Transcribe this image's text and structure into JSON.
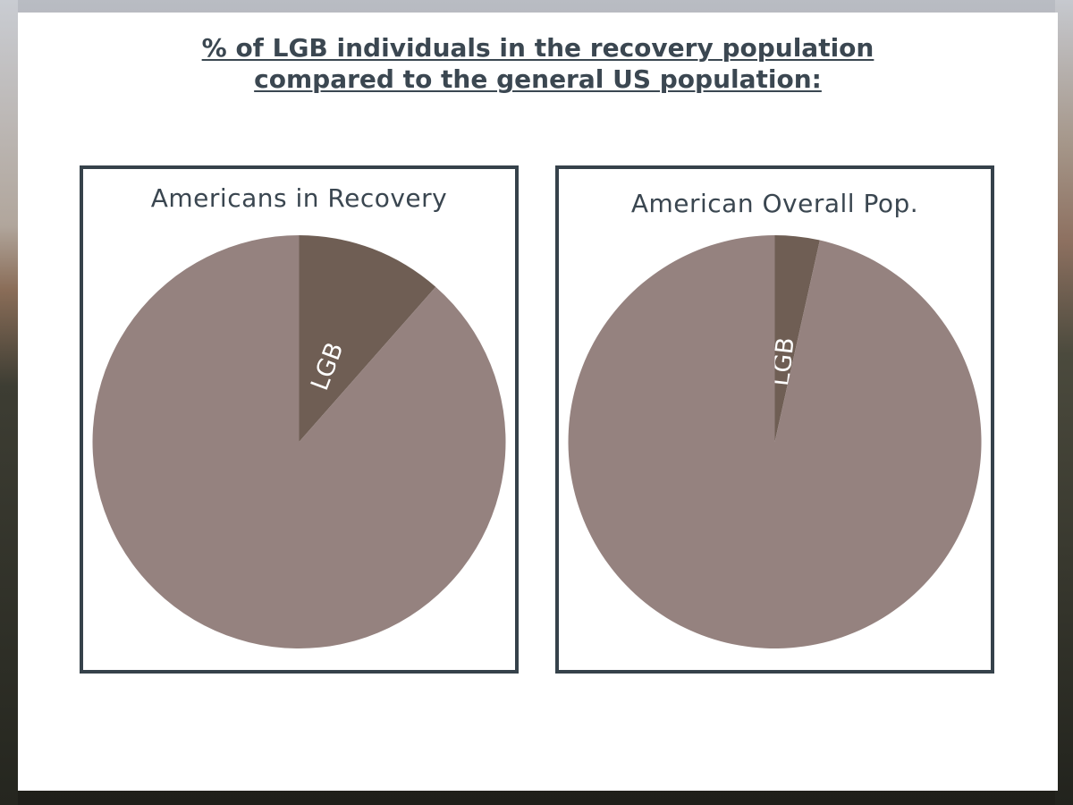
{
  "title": {
    "line1": "% of LGB individuals in the recovery population",
    "line2": "compared to the general US population:"
  },
  "colors": {
    "rest_slice": "#95827f",
    "lgb_slice": "#6f5e54",
    "panel_border": "#36424b",
    "title_text": "#3b4751"
  },
  "chart_data": [
    {
      "type": "pie",
      "title": "Americans in Recovery",
      "slices": [
        {
          "label": "LGB",
          "value": 11.5,
          "color": "#6f5e54"
        },
        {
          "label": "",
          "value": 88.5,
          "color": "#95827f"
        }
      ]
    },
    {
      "type": "pie",
      "title": "American Overall Pop.",
      "slices": [
        {
          "label": "LGB",
          "value": 3.5,
          "color": "#6f5e54"
        },
        {
          "label": "",
          "value": 96.5,
          "color": "#95827f"
        }
      ]
    }
  ]
}
